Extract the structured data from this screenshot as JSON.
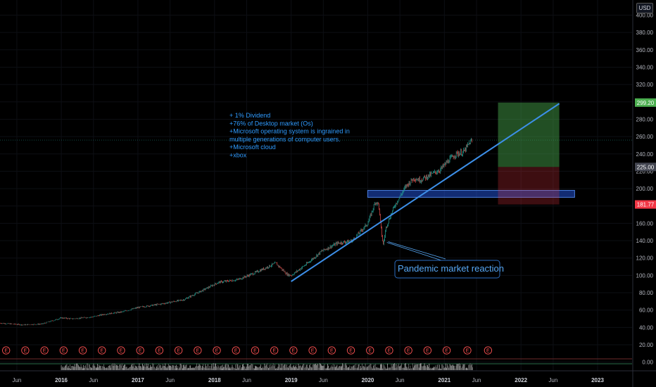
{
  "currency": "USD",
  "chart_data": {
    "type": "candlestick",
    "y_range": [
      -10,
      415
    ],
    "y_ticks": [
      0,
      20,
      40,
      60,
      80,
      100,
      120,
      140,
      160,
      180,
      200,
      220,
      240,
      260,
      280,
      300,
      320,
      340,
      360,
      380,
      400
    ],
    "y_tick_labels": [
      "0.00",
      "20.00",
      "40.00",
      "60.00",
      "80.00",
      "100.00",
      "120.00",
      "140.00",
      "160.00",
      "180.00",
      "200.00",
      "220.00",
      "240.00",
      "260.00",
      "280.00",
      "300.00",
      "320.00",
      "340.00",
      "360.00",
      "380.00",
      "400.00"
    ],
    "x_range": [
      2015.2,
      2023.45
    ],
    "x_ticks": [
      {
        "label": "Jun",
        "t": 2015.42,
        "year": false
      },
      {
        "label": "2016",
        "t": 2016.0,
        "year": true
      },
      {
        "label": "Jun",
        "t": 2016.42,
        "year": false
      },
      {
        "label": "2017",
        "t": 2017.0,
        "year": true
      },
      {
        "label": "Jun",
        "t": 2017.42,
        "year": false
      },
      {
        "label": "2018",
        "t": 2018.0,
        "year": true
      },
      {
        "label": "Jun",
        "t": 2018.42,
        "year": false
      },
      {
        "label": "2019",
        "t": 2019.0,
        "year": true
      },
      {
        "label": "Jun",
        "t": 2019.42,
        "year": false
      },
      {
        "label": "2020",
        "t": 2020.0,
        "year": true
      },
      {
        "label": "Jun",
        "t": 2020.42,
        "year": false
      },
      {
        "label": "2021",
        "t": 2021.0,
        "year": true
      },
      {
        "label": "Jun",
        "t": 2021.42,
        "year": false
      },
      {
        "label": "2022",
        "t": 2022.0,
        "year": true
      },
      {
        "label": "Jun",
        "t": 2022.42,
        "year": false
      },
      {
        "label": "2023",
        "t": 2023.0,
        "year": true
      }
    ],
    "price_path": [
      [
        2015.2,
        45
      ],
      [
        2015.5,
        43
      ],
      [
        2015.75,
        44
      ],
      [
        2016.0,
        51
      ],
      [
        2016.15,
        50
      ],
      [
        2016.4,
        52
      ],
      [
        2016.55,
        55
      ],
      [
        2016.8,
        58
      ],
      [
        2017.0,
        63
      ],
      [
        2017.3,
        67
      ],
      [
        2017.6,
        72
      ],
      [
        2017.85,
        83
      ],
      [
        2018.05,
        92
      ],
      [
        2018.3,
        95
      ],
      [
        2018.5,
        102
      ],
      [
        2018.7,
        110
      ],
      [
        2018.8,
        114
      ],
      [
        2018.95,
        101
      ],
      [
        2019.0,
        100
      ],
      [
        2019.2,
        113
      ],
      [
        2019.4,
        128
      ],
      [
        2019.6,
        137
      ],
      [
        2019.8,
        140
      ],
      [
        2020.0,
        160
      ],
      [
        2020.1,
        185
      ],
      [
        2020.14,
        182
      ],
      [
        2020.18,
        148
      ],
      [
        2020.2,
        135
      ],
      [
        2020.24,
        156
      ],
      [
        2020.35,
        180
      ],
      [
        2020.5,
        203
      ],
      [
        2020.6,
        212
      ],
      [
        2020.68,
        210
      ],
      [
        2020.8,
        215
      ],
      [
        2020.95,
        222
      ],
      [
        2021.05,
        232
      ],
      [
        2021.15,
        240
      ],
      [
        2021.25,
        242
      ],
      [
        2021.33,
        253
      ],
      [
        2021.37,
        256
      ]
    ],
    "current_price_level": 256,
    "annotations": {
      "notes": [
        "+ 1% Dividend",
        "+76% of Desktop market (Os)",
        "+Microsoft operating system is ingrained in",
        "  multiple generations of computer users.",
        "+Microsoft cloud",
        "+xbox"
      ],
      "callout": "Pandemic market reaction",
      "trendline": {
        "from": [
          2019.0,
          93
        ],
        "to": [
          2022.5,
          298
        ]
      },
      "support_zone": {
        "t0": 2020.0,
        "t1": 2022.7,
        "low": 190,
        "high": 198
      },
      "position": {
        "t0": 2021.7,
        "t1": 2022.5,
        "entry": 225.0,
        "target": 299.2,
        "stop": 181.77
      },
      "price_tags": [
        {
          "label": "299.20",
          "value": 299.2,
          "color": "#4caf50"
        },
        {
          "label": "225.00",
          "value": 225.0,
          "color": "#434651"
        },
        {
          "label": "181.77",
          "value": 181.77,
          "color": "#f23645"
        }
      ]
    },
    "earnings_marker_label": "E",
    "earnings_dates": [
      2015.28,
      2015.53,
      2015.78,
      2016.03,
      2016.28,
      2016.53,
      2016.78,
      2017.03,
      2017.28,
      2017.53,
      2017.78,
      2018.03,
      2018.28,
      2018.53,
      2018.78,
      2019.03,
      2019.28,
      2019.53,
      2019.78,
      2020.03,
      2020.28,
      2020.53,
      2020.78,
      2021.03,
      2021.3,
      2021.57
    ]
  }
}
